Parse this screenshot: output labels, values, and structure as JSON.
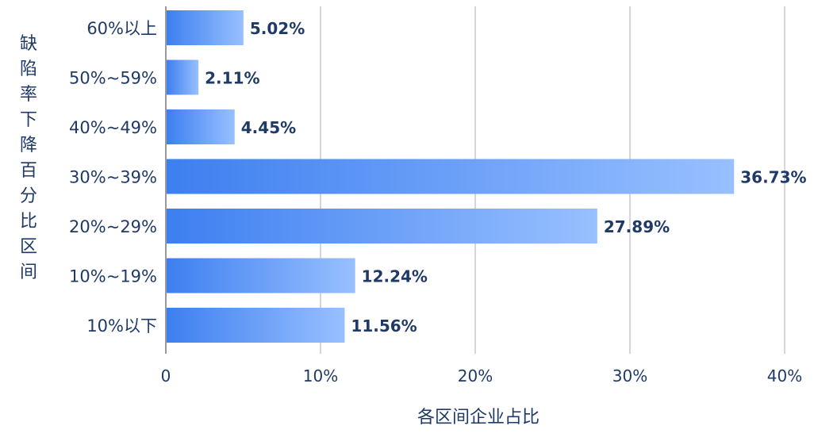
{
  "chart_data": {
    "type": "bar",
    "orientation": "horizontal",
    "categories": [
      "60%以上",
      "50%~59%",
      "40%~49%",
      "30%~39%",
      "20%~29%",
      "10%~19%",
      "10%以下"
    ],
    "values": [
      5.02,
      2.11,
      4.45,
      36.73,
      27.89,
      12.24,
      11.56
    ],
    "value_labels": [
      "5.02%",
      "2.11%",
      "4.45%",
      "36.73%",
      "27.89%",
      "12.24%",
      "11.56%"
    ],
    "xlabel": "各区间企业占比",
    "ylabel": "缺陷率下降百分比区间",
    "xlim": [
      0,
      40
    ],
    "x_ticks": [
      0,
      10,
      20,
      30,
      40
    ],
    "x_tick_labels": [
      "0",
      "10%",
      "20%",
      "30%",
      "40%"
    ],
    "grid": "vertical",
    "colors": {
      "bar_start": "#3d7ff0",
      "bar_end": "#98c0ff",
      "text": "#1f3a66",
      "grid": "#c8c8c8"
    }
  }
}
